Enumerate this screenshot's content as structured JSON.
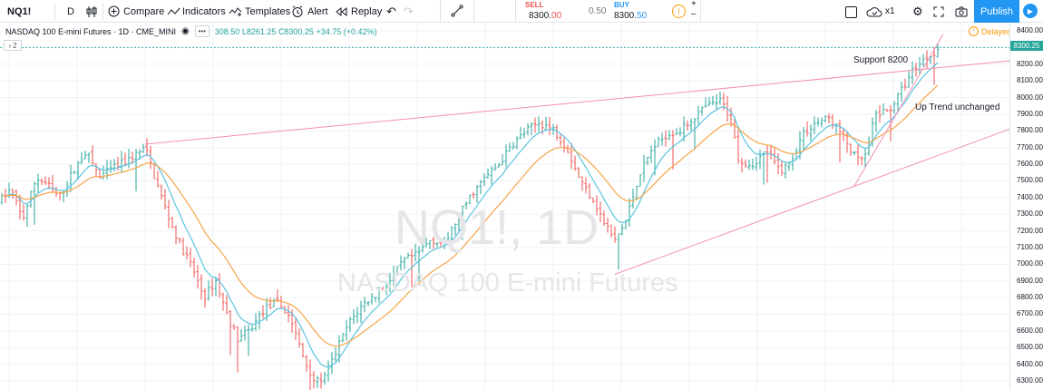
{
  "toolbar": {
    "symbol": "NQ1!",
    "interval": "D",
    "compare_label": "Compare",
    "indicators_label": "Indicators",
    "templates_label": "Templates",
    "alert_label": "Alert",
    "replay_label": "Replay",
    "sell_label": "SELL",
    "sell_price_main": "8300.",
    "sell_price_dec": "00",
    "spread": "0.50",
    "buy_label": "BUY",
    "buy_price_main": "8300.",
    "buy_price_dec": "50",
    "multiplier": "x1",
    "publish_label": "Publish"
  },
  "legend": {
    "title": "NASDAQ 100 E-mini Futures · 1D · CME_MINI",
    "high": "308.50",
    "low": "L8261.25",
    "close": "C8300.25",
    "change": "+34.75 (+0.42%)",
    "pane_count": "2",
    "delayed": "Delayed"
  },
  "watermark": {
    "symbol": "NQ1!, 1D",
    "name": "NASDAQ 100 E-mini Futures"
  },
  "annotations": {
    "support": "Support 8200",
    "trend": "Up Trend unchanged"
  },
  "price_axis": {
    "labels": [
      "8400.00",
      "8300.25",
      "8200.00",
      "8100.00",
      "8000.00",
      "7900.00",
      "7800.00",
      "7700.00",
      "7600.00",
      "7500.00",
      "7400.00",
      "7300.00",
      "7200.00",
      "7100.00",
      "7000.00",
      "6900.00",
      "6800.00",
      "6700.00",
      "6600.00",
      "6500.00",
      "6400.00",
      "6300.00"
    ],
    "current": "8300.25"
  },
  "colors": {
    "up": "#26a69a",
    "down": "#ef5350",
    "ema_fast": "#5bc4e0",
    "ema_slow": "#f7a44a",
    "trendline": "#f48fb1",
    "accent": "#2196f3"
  },
  "chart_data": {
    "type": "candlestick",
    "symbol": "NQ1!",
    "interval": "1D",
    "ylim": [
      6250,
      8450
    ],
    "current_price": 8300.25,
    "close_path": [
      [
        0,
        7380
      ],
      [
        12,
        7450
      ],
      [
        25,
        7270
      ],
      [
        40,
        7520
      ],
      [
        52,
        7480
      ],
      [
        65,
        7400
      ],
      [
        80,
        7550
      ],
      [
        95,
        7680
      ],
      [
        110,
        7520
      ],
      [
        125,
        7580
      ],
      [
        140,
        7620
      ],
      [
        160,
        7700
      ],
      [
        175,
        7450
      ],
      [
        188,
        7250
      ],
      [
        200,
        7100
      ],
      [
        212,
        6980
      ],
      [
        225,
        6800
      ],
      [
        238,
        6900
      ],
      [
        250,
        6700
      ],
      [
        262,
        6550
      ],
      [
        275,
        6600
      ],
      [
        290,
        6720
      ],
      [
        305,
        6780
      ],
      [
        320,
        6680
      ],
      [
        335,
        6430
      ],
      [
        348,
        6290
      ],
      [
        360,
        6330
      ],
      [
        372,
        6500
      ],
      [
        385,
        6650
      ],
      [
        400,
        6760
      ],
      [
        415,
        6820
      ],
      [
        430,
        6900
      ],
      [
        445,
        7020
      ],
      [
        460,
        7060
      ],
      [
        475,
        7150
      ],
      [
        490,
        7120
      ],
      [
        505,
        7280
      ],
      [
        520,
        7420
      ],
      [
        535,
        7520
      ],
      [
        550,
        7600
      ],
      [
        565,
        7720
      ],
      [
        580,
        7800
      ],
      [
        595,
        7850
      ],
      [
        610,
        7810
      ],
      [
        625,
        7700
      ],
      [
        640,
        7500
      ],
      [
        655,
        7380
      ],
      [
        665,
        7260
      ],
      [
        678,
        7140
      ],
      [
        690,
        7260
      ],
      [
        705,
        7540
      ],
      [
        720,
        7700
      ],
      [
        735,
        7780
      ],
      [
        750,
        7800
      ],
      [
        765,
        7880
      ],
      [
        780,
        7950
      ],
      [
        795,
        7980
      ],
      [
        805,
        7880
      ],
      [
        815,
        7620
      ],
      [
        830,
        7600
      ],
      [
        845,
        7680
      ],
      [
        860,
        7560
      ],
      [
        870,
        7600
      ],
      [
        885,
        7780
      ],
      [
        900,
        7850
      ],
      [
        915,
        7880
      ],
      [
        930,
        7760
      ],
      [
        945,
        7620
      ],
      [
        955,
        7650
      ],
      [
        965,
        7900
      ],
      [
        980,
        7920
      ],
      [
        995,
        8050
      ],
      [
        1008,
        8180
      ],
      [
        1022,
        8240
      ],
      [
        1036,
        8300
      ]
    ],
    "trendlines": [
      {
        "from": [
          160,
          7720
        ],
        "to": [
          1113,
          8220
        ]
      },
      {
        "from": [
          678,
          6940
        ],
        "to": [
          1113,
          7810
        ]
      },
      {
        "from": [
          942,
          7470
        ],
        "to": [
          1040,
          8380
        ]
      }
    ]
  }
}
